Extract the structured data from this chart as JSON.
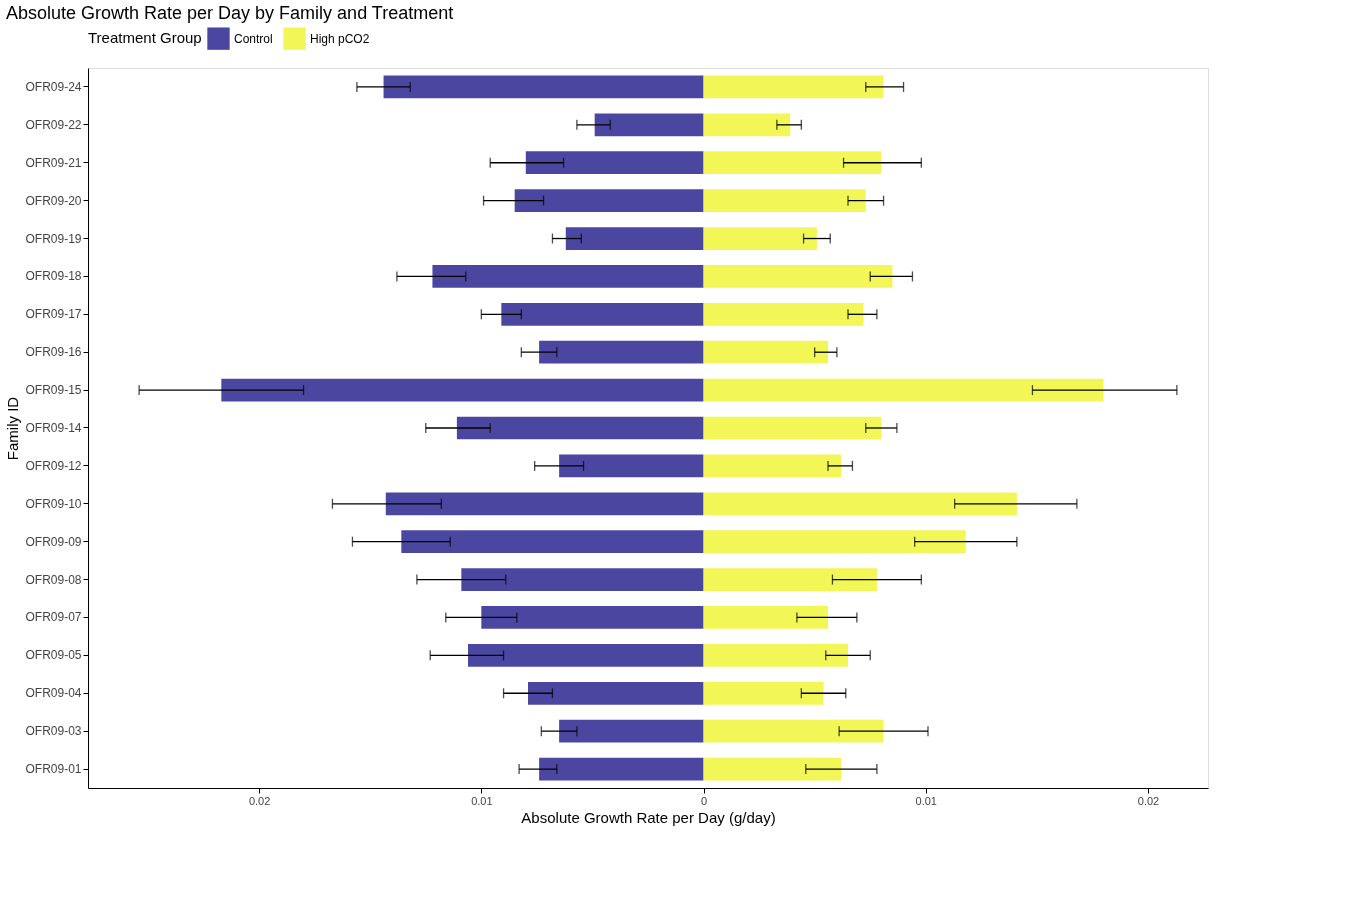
{
  "chart_data": {
    "type": "bar",
    "orientation": "horizontal",
    "title": "Absolute Growth Rate per Day by Family and Treatment",
    "xlabel": "Absolute Growth Rate per Day (g/day)",
    "ylabel": "Family ID",
    "legend_title": "Treatment Group",
    "legend": "top",
    "grid": false,
    "stacked": true,
    "categories": [
      "OFR09-24",
      "OFR09-22",
      "OFR09-21",
      "OFR09-20",
      "OFR09-19",
      "OFR09-18",
      "OFR09-17",
      "OFR09-16",
      "OFR09-15",
      "OFR09-14",
      "OFR09-12",
      "OFR09-10",
      "OFR09-09",
      "OFR09-08",
      "OFR09-07",
      "OFR09-05",
      "OFR09-04",
      "OFR09-03",
      "OFR09-01"
    ],
    "xlim": [
      -0.0277,
      0.0227
    ],
    "xticks": [
      {
        "value": -0.02,
        "label": "0.02"
      },
      {
        "value": -0.01,
        "label": "0.01"
      },
      0,
      0.01,
      0.02
    ],
    "series": [
      {
        "name": "Control",
        "color": "#4b47a0",
        "values": [
          -0.0144,
          -0.0049,
          -0.008,
          -0.0085,
          -0.0062,
          -0.0122,
          -0.0091,
          -0.0074,
          -0.0217,
          -0.0111,
          -0.0065,
          -0.0143,
          -0.0136,
          -0.0109,
          -0.01,
          -0.0106,
          -0.0079,
          -0.0065,
          -0.0074
        ],
        "errors": [
          [
            -0.0156,
            -0.0132
          ],
          [
            -0.0057,
            -0.0042
          ],
          [
            -0.0096,
            -0.0063
          ],
          [
            -0.0099,
            -0.0072
          ],
          [
            -0.0068,
            -0.0055
          ],
          [
            -0.0138,
            -0.0107
          ],
          [
            -0.01,
            -0.0082
          ],
          [
            -0.0082,
            -0.0066
          ],
          [
            -0.0254,
            -0.018
          ],
          [
            -0.0125,
            -0.0096
          ],
          [
            -0.0076,
            -0.0054
          ],
          [
            -0.0167,
            -0.0118
          ],
          [
            -0.0158,
            -0.0114
          ],
          [
            -0.0129,
            -0.0089
          ],
          [
            -0.0116,
            -0.0084
          ],
          [
            -0.0123,
            -0.009
          ],
          [
            -0.009,
            -0.0068
          ],
          [
            -0.0073,
            -0.0057
          ],
          [
            -0.0083,
            -0.0066
          ]
        ]
      },
      {
        "name": "High pCO2",
        "color": "#f2f757",
        "values": [
          0.0081,
          0.0039,
          0.008,
          0.0073,
          0.0051,
          0.0085,
          0.0072,
          0.0056,
          0.018,
          0.008,
          0.0062,
          0.0141,
          0.0118,
          0.0078,
          0.0056,
          0.0065,
          0.0054,
          0.0081,
          0.0062
        ],
        "errors": [
          [
            0.0073,
            0.009
          ],
          [
            0.0033,
            0.0044
          ],
          [
            0.0063,
            0.0098
          ],
          [
            0.0065,
            0.0081
          ],
          [
            0.0045,
            0.0057
          ],
          [
            0.0075,
            0.0094
          ],
          [
            0.0065,
            0.0078
          ],
          [
            0.005,
            0.006
          ],
          [
            0.0148,
            0.0213
          ],
          [
            0.0073,
            0.0087
          ],
          [
            0.0056,
            0.0067
          ],
          [
            0.0113,
            0.0168
          ],
          [
            0.0095,
            0.0141
          ],
          [
            0.0058,
            0.0098
          ],
          [
            0.0042,
            0.0069
          ],
          [
            0.0055,
            0.0075
          ],
          [
            0.0044,
            0.0064
          ],
          [
            0.0061,
            0.0101
          ],
          [
            0.0046,
            0.0078
          ]
        ]
      }
    ]
  }
}
